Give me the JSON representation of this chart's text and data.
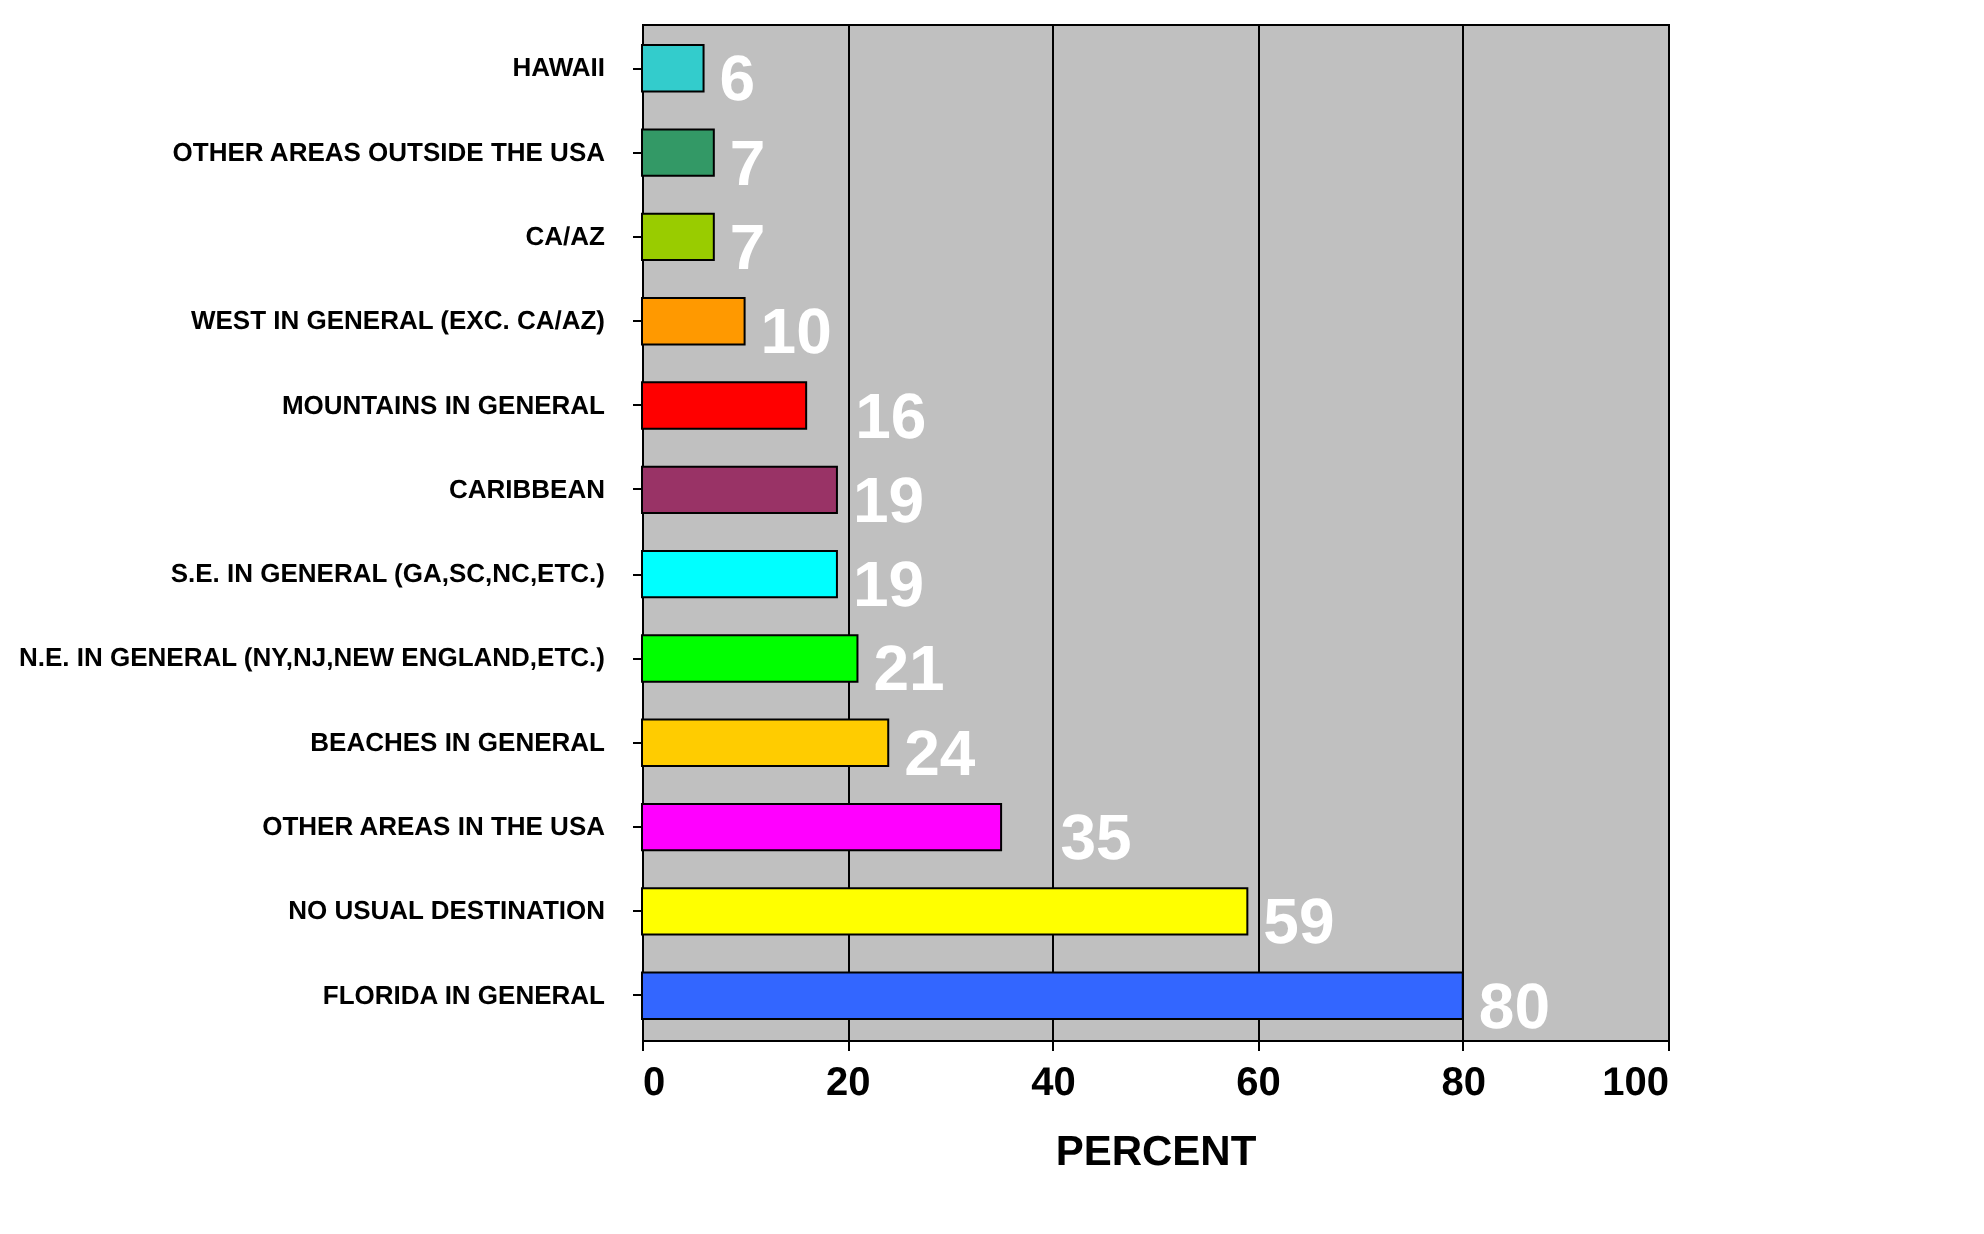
{
  "chart_data": {
    "type": "bar",
    "orientation": "horizontal",
    "xlabel": "PERCENT",
    "categories": [
      "HAWAII",
      "OTHER AREAS OUTSIDE THE USA",
      "CA/AZ",
      "WEST IN GENERAL (EXC. CA/AZ)",
      "MOUNTAINS IN GENERAL",
      "CARIBBEAN",
      "S.E. IN GENERAL (GA,SC,NC,ETC.)",
      "N.E. IN GENERAL (NY,NJ,NEW ENGLAND,ETC.)",
      "BEACHES IN GENERAL",
      "OTHER AREAS IN THE USA",
      "NO USUAL DESTINATION",
      "FLORIDA IN GENERAL"
    ],
    "values": [
      6,
      7,
      7,
      10,
      16,
      19,
      19,
      21,
      24,
      35,
      59,
      80
    ],
    "colors": [
      "#33cccc",
      "#339966",
      "#99cc00",
      "#ff9900",
      "#ff0000",
      "#993366",
      "#00ffff",
      "#00ff00",
      "#ffcc00",
      "#ff00ff",
      "#ffff00",
      "#3366ff"
    ],
    "xlim": [
      0,
      100
    ],
    "xticks": [
      0,
      20,
      40,
      60,
      80,
      100
    ],
    "grid": "x",
    "data_labels": true
  }
}
